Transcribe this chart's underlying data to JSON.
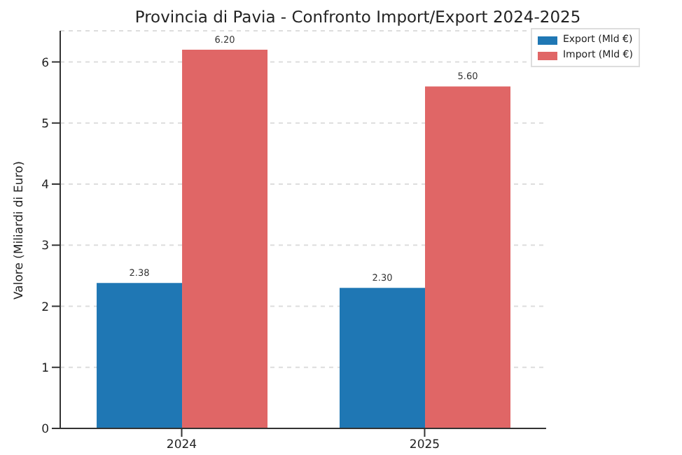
{
  "chart_data": {
    "type": "bar",
    "title": "Provincia di Pavia - Confronto Import/Export 2024-2025",
    "ylabel": "Valore (Miliardi di Euro)",
    "categories": [
      "2024",
      "2025"
    ],
    "series": [
      {
        "name": "Export (Mld €)",
        "color": "#1f77b4",
        "values": [
          2.38,
          2.3
        ],
        "value_labels": [
          "2.38",
          "2.30"
        ]
      },
      {
        "name": "Import (Mld €)",
        "color": "#e06666",
        "values": [
          6.2,
          5.6
        ],
        "value_labels": [
          "6.20",
          "5.60"
        ]
      }
    ],
    "ylim": [
      0,
      6.51
    ],
    "yticks": [
      0,
      1,
      2,
      3,
      4,
      5,
      6
    ],
    "grid": "y",
    "legend": "top right"
  }
}
